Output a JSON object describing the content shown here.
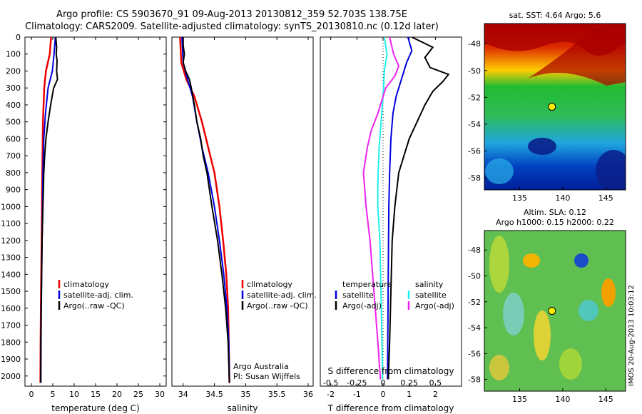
{
  "header": {
    "line1": "Argo profile: CS 5903670_91 09-Aug-2013 20130812_359 52.703S 138.75E",
    "line2": "Climatology: CARS2009. Satellite-adjusted climatology: synTS_20130810.nc (0.12d later)"
  },
  "colors": {
    "climatology": "#ee0000",
    "satellite": "#0000dd",
    "argo": "#000000",
    "salinity_sat": "#22eeee",
    "salinity_argo": "#ee22ee"
  },
  "chart_data": [
    {
      "type": "line",
      "xlabel": "temperature (deg C)",
      "xticks": [
        0,
        5,
        10,
        15,
        20,
        25,
        30
      ],
      "xlim": [
        -1.5,
        31.5
      ],
      "yticks": [
        0,
        100,
        200,
        300,
        400,
        500,
        600,
        700,
        800,
        900,
        1000,
        1100,
        1200,
        1300,
        1400,
        1500,
        1600,
        1700,
        1800,
        1900,
        2000
      ],
      "ylim": [
        0,
        2060
      ],
      "legend": [
        "climatology",
        "satellite-adj. clim.",
        "Argo(..raw -QC)"
      ],
      "series": [
        {
          "name": "climatology",
          "points": [
            [
              4.6,
              0
            ],
            [
              4.3,
              100
            ],
            [
              3.4,
              200
            ],
            [
              3.0,
              300
            ],
            [
              2.7,
              500
            ],
            [
              2.6,
              700
            ],
            [
              2.5,
              900
            ],
            [
              2.4,
              1200
            ],
            [
              2.25,
              1500
            ],
            [
              2.15,
              1800
            ],
            [
              2.1,
              2040
            ]
          ]
        },
        {
          "name": "satellite-adj. clim.",
          "points": [
            [
              5.6,
              0
            ],
            [
              5.3,
              100
            ],
            [
              4.9,
              200
            ],
            [
              3.9,
              300
            ],
            [
              3.3,
              450
            ],
            [
              2.9,
              600
            ],
            [
              2.7,
              800
            ],
            [
              2.5,
              1200
            ],
            [
              2.3,
              1600
            ],
            [
              2.2,
              2040
            ]
          ]
        },
        {
          "name": "Argo(..raw -QC)",
          "points": [
            [
              5.7,
              0
            ],
            [
              5.9,
              60
            ],
            [
              5.8,
              100
            ],
            [
              6.0,
              140
            ],
            [
              5.9,
              200
            ],
            [
              6.1,
              250
            ],
            [
              5.2,
              300
            ],
            [
              4.5,
              400
            ],
            [
              3.9,
              500
            ],
            [
              3.4,
              600
            ],
            [
              3.1,
              700
            ],
            [
              2.9,
              800
            ],
            [
              2.7,
              1000
            ],
            [
              2.5,
              1200
            ],
            [
              2.4,
              1400
            ],
            [
              2.3,
              1600
            ],
            [
              2.2,
              1800
            ],
            [
              2.2,
              2040
            ]
          ]
        }
      ]
    },
    {
      "type": "line",
      "xlabel": "salinity",
      "xticks": [
        34,
        34.5,
        35,
        35.5,
        36
      ],
      "xlim": [
        33.82,
        36.08
      ],
      "ylim": [
        0,
        2060
      ],
      "legend": [
        "climatology",
        "satellite-adj. clim.",
        "Argo(..raw -QC)"
      ],
      "annotation": [
        "Argo Australia",
        "PI: Susan Wijffels"
      ],
      "series": [
        {
          "name": "climatology",
          "points": [
            [
              33.95,
              0
            ],
            [
              33.97,
              150
            ],
            [
              34.05,
              250
            ],
            [
              34.18,
              350
            ],
            [
              34.3,
              500
            ],
            [
              34.4,
              650
            ],
            [
              34.5,
              800
            ],
            [
              34.58,
              1000
            ],
            [
              34.64,
              1200
            ],
            [
              34.69,
              1400
            ],
            [
              34.72,
              1600
            ],
            [
              34.73,
              1800
            ],
            [
              34.74,
              2040
            ]
          ]
        },
        {
          "name": "satellite-adj. clim.",
          "points": [
            [
              33.98,
              0
            ],
            [
              34.0,
              150
            ],
            [
              34.07,
              250
            ],
            [
              34.15,
              350
            ],
            [
              34.22,
              500
            ],
            [
              34.3,
              650
            ],
            [
              34.4,
              800
            ],
            [
              34.5,
              1000
            ],
            [
              34.58,
              1200
            ],
            [
              34.65,
              1400
            ],
            [
              34.7,
              1600
            ],
            [
              34.73,
              1800
            ],
            [
              34.74,
              2040
            ]
          ]
        },
        {
          "name": "Argo(..raw -QC)",
          "points": [
            [
              34.0,
              0
            ],
            [
              34.0,
              50
            ],
            [
              34.02,
              100
            ],
            [
              34.0,
              150
            ],
            [
              34.04,
              200
            ],
            [
              34.1,
              250
            ],
            [
              34.13,
              300
            ],
            [
              34.18,
              400
            ],
            [
              34.22,
              500
            ],
            [
              34.28,
              600
            ],
            [
              34.32,
              700
            ],
            [
              34.38,
              800
            ],
            [
              34.46,
              1000
            ],
            [
              34.55,
              1200
            ],
            [
              34.62,
              1400
            ],
            [
              34.68,
              1600
            ],
            [
              34.72,
              1800
            ],
            [
              34.74,
              2040
            ]
          ]
        }
      ]
    },
    {
      "type": "line",
      "xlabel": "T difference from climatology",
      "xlabel2": "S difference from climatology",
      "xticks": [
        -2,
        -1,
        0,
        1,
        2
      ],
      "xticks_s": [
        "-0.5",
        "-0.25",
        "0",
        "0.25",
        "0.5"
      ],
      "xlim": [
        -2.4,
        3.0
      ],
      "ylim": [
        0,
        2060
      ],
      "legend_titles": [
        "temperature",
        "salinity"
      ],
      "legend": [
        "satellite",
        "Argo(-adj)",
        "satellite",
        "Argo(-adj)"
      ],
      "series": [
        {
          "name": "temperature satellite",
          "points": [
            [
              0.95,
              0
            ],
            [
              1.1,
              80
            ],
            [
              0.9,
              150
            ],
            [
              0.7,
              250
            ],
            [
              0.5,
              350
            ],
            [
              0.38,
              450
            ],
            [
              0.3,
              600
            ],
            [
              0.25,
              800
            ],
            [
              0.22,
              1000
            ],
            [
              0.2,
              1400
            ],
            [
              0.18,
              1800
            ],
            [
              0.17,
              2020
            ]
          ]
        },
        {
          "name": "temperature Argo(-adj)",
          "points": [
            [
              1.1,
              0
            ],
            [
              1.9,
              60
            ],
            [
              1.6,
              120
            ],
            [
              1.8,
              180
            ],
            [
              2.5,
              220
            ],
            [
              2.3,
              260
            ],
            [
              1.9,
              320
            ],
            [
              1.6,
              400
            ],
            [
              1.3,
              500
            ],
            [
              1.0,
              600
            ],
            [
              0.8,
              700
            ],
            [
              0.6,
              800
            ],
            [
              0.45,
              1000
            ],
            [
              0.35,
              1200
            ],
            [
              0.3,
              1500
            ],
            [
              0.25,
              1800
            ],
            [
              0.2,
              2020
            ]
          ]
        },
        {
          "name": "salinity satellite",
          "points": [
            [
              0.05,
              0
            ],
            [
              0.15,
              100
            ],
            [
              0.05,
              200
            ],
            [
              0.02,
              300
            ],
            [
              -0.05,
              450
            ],
            [
              -0.15,
              650
            ],
            [
              -0.2,
              850
            ],
            [
              -0.2,
              1000
            ],
            [
              -0.12,
              1200
            ],
            [
              -0.08,
              1500
            ],
            [
              -0.04,
              1800
            ],
            [
              -0.02,
              2020
            ]
          ]
        },
        {
          "name": "salinity Argo(-adj)",
          "points": [
            [
              0.25,
              0
            ],
            [
              0.4,
              100
            ],
            [
              0.6,
              170
            ],
            [
              0.45,
              230
            ],
            [
              0.1,
              300
            ],
            [
              -0.2,
              450
            ],
            [
              -0.45,
              550
            ],
            [
              -0.6,
              650
            ],
            [
              -0.75,
              800
            ],
            [
              -0.65,
              1000
            ],
            [
              -0.5,
              1200
            ],
            [
              -0.35,
              1500
            ],
            [
              -0.2,
              1800
            ],
            [
              -0.1,
              2020
            ]
          ]
        }
      ]
    },
    {
      "type": "heatmap",
      "title": "sat. SST: 4.64 Argo: 5.6",
      "xticks": [
        135,
        140,
        145
      ],
      "yticks": [
        -48,
        -50,
        -52,
        -54,
        -56,
        -58
      ],
      "xlim": [
        130.9,
        147.3
      ],
      "ylim": [
        -46.5,
        -58.9
      ],
      "marker": [
        138.75,
        -52.703
      ]
    },
    {
      "type": "heatmap",
      "title": "Altim. SLA: 0.12",
      "subtitle": "Argo h1000: 0.15 h2000: 0.22",
      "xticks": [
        135,
        140,
        145
      ],
      "yticks": [
        -48,
        -50,
        -52,
        -54,
        -56,
        -58
      ],
      "xlim": [
        130.9,
        147.3
      ],
      "ylim": [
        -46.5,
        -58.9
      ],
      "marker": [
        138.75,
        -52.703
      ]
    }
  ],
  "footer": {
    "stamp": "IMOS 20-Aug-2013 10:03:12"
  }
}
